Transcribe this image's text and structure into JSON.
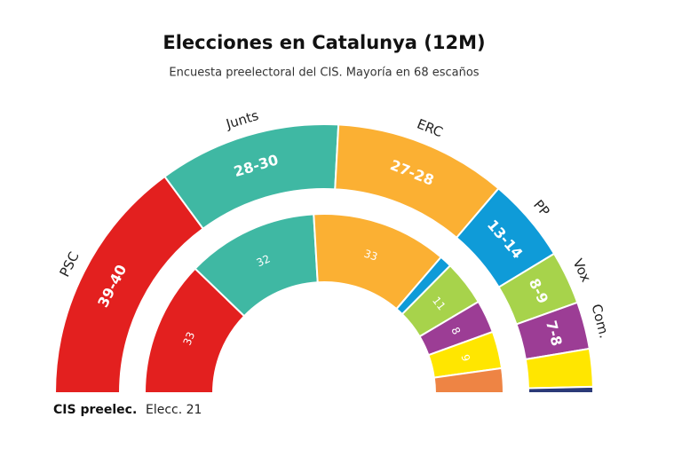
{
  "chart_data": {
    "type": "parliament",
    "title": "Elecciones en Catalunya (12M)",
    "subtitle": "Encuesta preelectoral del CIS. Mayoría en 68 escaños",
    "categories": [
      "PSC",
      "Junts",
      "ERC",
      "PP",
      "Vox",
      "Com.",
      null,
      null
    ],
    "series": [
      {
        "name": "CIS preelec.",
        "values": [
          39.5,
          29,
          27.5,
          13.5,
          8.5,
          7.5,
          6,
          1
        ],
        "value_labels": [
          "39-40",
          "28-30",
          "27-28",
          "13-14",
          "8-9",
          "7-8",
          null,
          null
        ],
        "colors": [
          "#e3201f",
          "#3fb8a3",
          "#fbb033",
          "#0f9bd8",
          "#a7d34b",
          "#9c3d95",
          "#ffe600",
          "#2b3a78"
        ]
      },
      {
        "name": "Elecc. 21",
        "values": [
          33,
          32,
          33,
          3,
          11,
          8,
          9,
          6
        ],
        "value_labels": [
          "33",
          "32",
          "33",
          null,
          "11",
          "8",
          "9",
          null
        ],
        "colors": [
          "#e3201f",
          "#3fb8a3",
          "#fbb033",
          "#0f9bd8",
          "#a7d34b",
          "#9c3d95",
          "#ffe600",
          "#ee8444"
        ]
      }
    ]
  }
}
